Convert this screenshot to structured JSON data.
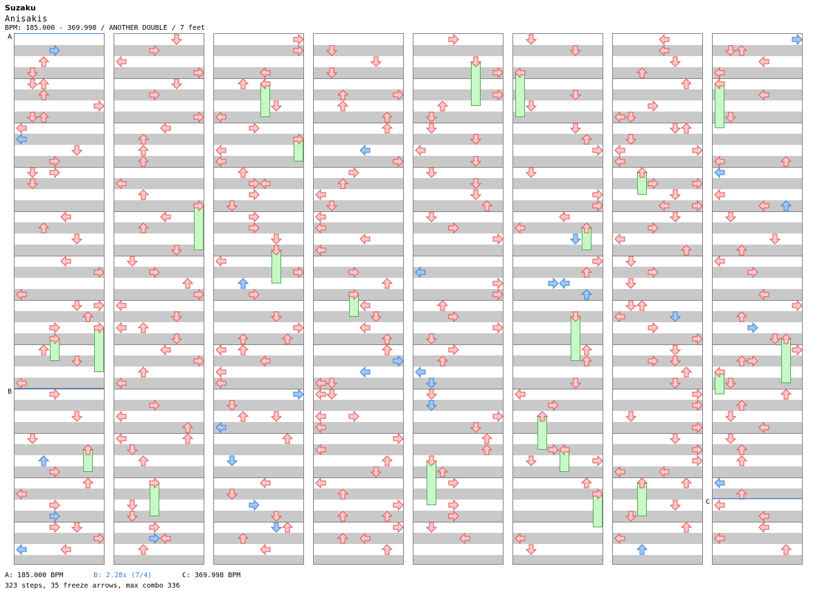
{
  "song": {
    "title": "Suzaku",
    "artist": "Anisakis",
    "info_line": "BPM: 185.000 - 369.998 / ANOTHER DOUBLE / 7 feet"
  },
  "sections": [
    {
      "label": "A",
      "column": 1
    },
    {
      "label": "B",
      "column": 1
    },
    {
      "label": "C",
      "column": 8
    }
  ],
  "legend": {
    "a": "A: 185.000 BPM",
    "b": "B: 2.28s (7/4)",
    "c": "C: 369.998 BPM"
  },
  "stats": "323 steps, 35 freeze arrows, max combo 336",
  "colors": {
    "normal_fill": "#ffc8c8",
    "normal_stroke": "#e05050",
    "blue_fill": "#9ec9f5",
    "blue_stroke": "#3a7bd5",
    "freeze_fill": "#c8f7c8",
    "freeze_stroke": "#4caf50",
    "section_line": "#3a7bd5"
  },
  "arrow_legend": [
    "left-arrow",
    "down-arrow",
    "up-arrow",
    "right-arrow"
  ]
}
